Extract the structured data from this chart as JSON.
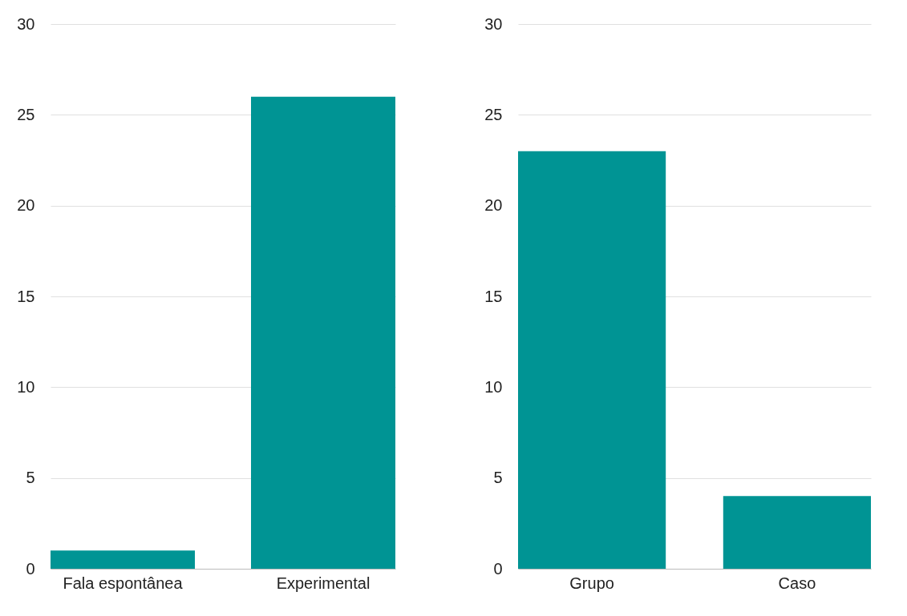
{
  "chart_data": [
    {
      "type": "bar",
      "categories": [
        "Fala espontânea",
        "Experimental"
      ],
      "values": [
        1,
        26
      ],
      "color": "#009494",
      "ylim": [
        0,
        30
      ],
      "yticks": [
        0,
        5,
        10,
        15,
        20,
        25,
        30
      ],
      "grid": "y"
    },
    {
      "type": "bar",
      "categories": [
        "Grupo",
        "Caso"
      ],
      "values": [
        23,
        4
      ],
      "color": "#009494",
      "ylim": [
        0,
        30
      ],
      "yticks": [
        0,
        5,
        10,
        15,
        20,
        25,
        30
      ],
      "grid": "y"
    }
  ]
}
